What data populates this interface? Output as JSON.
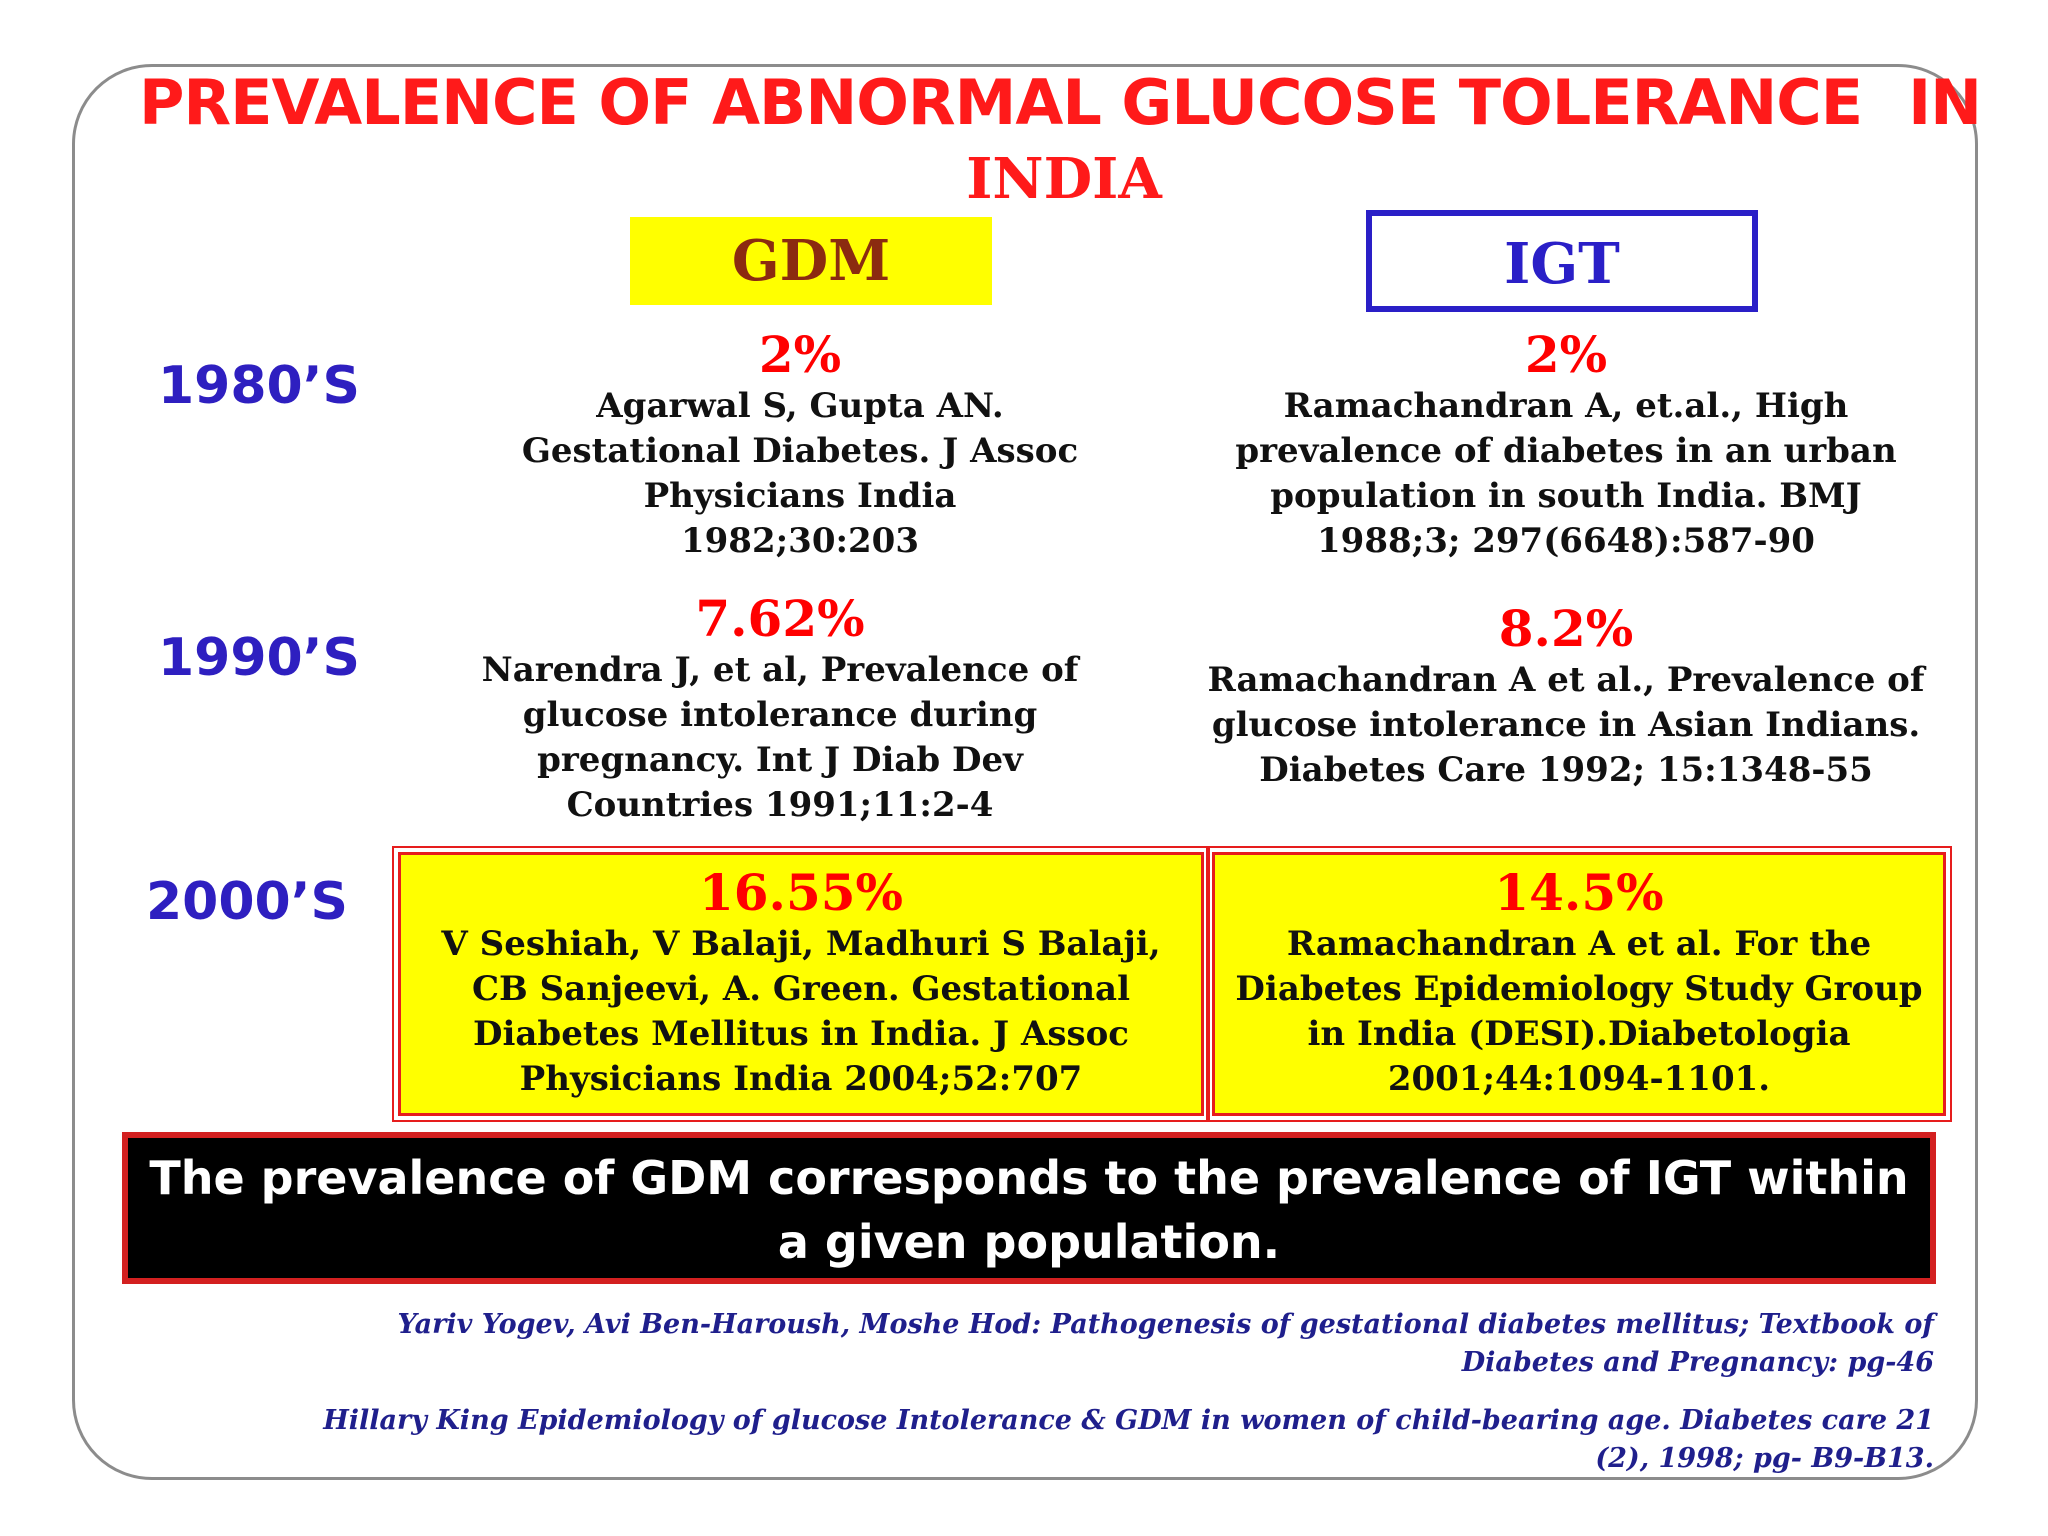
{
  "title": {
    "line1_part1": "PREVALENCE OF ABNORMAL GLUCOSE TOLERANCE",
    "line1_part2": "IN",
    "line2": "INDIA"
  },
  "columns": {
    "gdm": "GDM",
    "igt": "IGT"
  },
  "rows": [
    {
      "decade": "1980’S",
      "gdm": {
        "percent": "2%",
        "reference": [
          "Agarwal S, Gupta AN.",
          "Gestational Diabetes. J Assoc",
          "Physicians India",
          "1982;30:203"
        ]
      },
      "igt": {
        "percent": "2%",
        "reference": [
          "Ramachandran A, et.al., High",
          "prevalence of diabetes in an urban",
          "population in south India. BMJ",
          "1988;3; 297(6648):587-90"
        ]
      }
    },
    {
      "decade": "1990’S",
      "gdm": {
        "percent": "7.62%",
        "reference": [
          "Narendra J, et al, Prevalence of",
          "glucose intolerance during",
          "pregnancy. Int J Diab Dev",
          "Countries 1991;11:2-4"
        ]
      },
      "igt": {
        "percent": "8.2%",
        "reference": [
          "Ramachandran A et al., Prevalence of",
          "glucose intolerance in Asian Indians.",
          "Diabetes Care 1992; 15:1348-55"
        ]
      }
    },
    {
      "decade": "2000’S",
      "gdm": {
        "percent": "16.55%",
        "reference": [
          "V Seshiah, V Balaji, Madhuri S Balaji,",
          "CB Sanjeevi, A. Green. Gestational",
          "Diabetes Mellitus in India. J Assoc",
          "Physicians India 2004;52:707"
        ]
      },
      "igt": {
        "percent": "14.5%",
        "reference": [
          "Ramachandran A et al. For the",
          "Diabetes Epidemiology Study Group",
          "in India (DESI).Diabetologia",
          "2001;44:1094-1101."
        ]
      }
    }
  ],
  "conclusion": {
    "line1": "The prevalence of GDM corresponds to the prevalence of IGT within",
    "line2": "a given population."
  },
  "citations": [
    {
      "line1": "Yariv Yogev, Avi Ben-Haroush, Moshe Hod: Pathogenesis of gestational diabetes mellitus; Textbook of",
      "line2": "Diabetes and Pregnancy: pg-46"
    },
    {
      "line1": "Hillary King Epidemiology of glucose Intolerance & GDM in women of child-bearing age. Diabetes care 21",
      "line2": "(2), 1998; pg- B9-B13."
    }
  ],
  "colors": {
    "title_red": "#ff1a1a",
    "decade_blue": "#2e1fc0",
    "highlight_yellow": "#ffff00",
    "gdm_header_text": "#8b2b10",
    "igt_header_border": "#2a1fc7",
    "percent_red": "#ff0000",
    "citation_navy": "#1f1f8c"
  }
}
